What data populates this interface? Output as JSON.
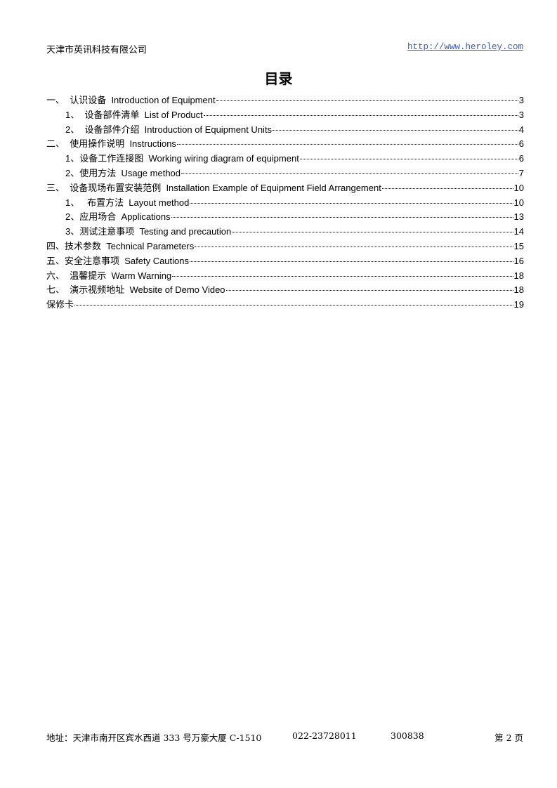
{
  "header": {
    "company": "天津市英讯科技有限公司",
    "url": "http://www.heroley.com"
  },
  "title": "目录",
  "toc": [
    {
      "text": "一、  认识设备  Introduction of Equipment",
      "page": "3",
      "level": 0
    },
    {
      "text": "1、  设备部件清单  List of Product",
      "page": "3",
      "level": 1
    },
    {
      "text": "2、  设备部件介绍  Introduction of Equipment Units",
      "page": "4",
      "level": 1
    },
    {
      "text": "二、  使用操作说明  Instructions",
      "page": "6",
      "level": 0
    },
    {
      "text": "1、设备工作连接图  Working wiring diagram of equipment",
      "page": "6",
      "level": 1
    },
    {
      "text": "2、使用方法  Usage method",
      "page": "7",
      "level": 1
    },
    {
      "text": "三、  设备现场布置安装范例  Installation Example of Equipment Field Arrangement",
      "page": "10",
      "level": 0
    },
    {
      "text": "1、   布置方法  Layout method",
      "page": "10",
      "level": 1
    },
    {
      "text": "2、应用场合  Applications",
      "page": "13",
      "level": 1
    },
    {
      "text": "3、测试注意事项  Testing and precaution",
      "page": "14",
      "level": 1
    },
    {
      "text": "四、技术参数  Technical Parameters",
      "page": "15",
      "level": 0
    },
    {
      "text": "五、安全注意事项  Safety Cautions",
      "page": "16",
      "level": 0
    },
    {
      "text": "六、  温馨提示  Warm Warning",
      "page": "18",
      "level": 0
    },
    {
      "text": "七、  演示视频地址  Website of Demo Video",
      "page": "18",
      "level": 0
    },
    {
      "text": "保修卡",
      "page": "19",
      "level": 0
    }
  ],
  "footer": {
    "address": "地址：天津市南开区宾水西道 333 号万豪大厦 C-1510",
    "phone": "022-23728011",
    "postcode": "300838",
    "page": "第 2 页"
  }
}
